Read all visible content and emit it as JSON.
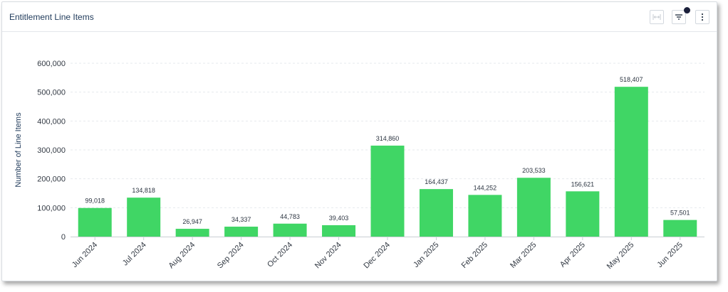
{
  "header": {
    "title": "Entitlement Line Items",
    "fit_icon": "fit-width-icon",
    "filter_icon": "filter-icon",
    "more_icon": "more-vertical-icon",
    "filter_active_color": "#1a1f3a"
  },
  "chart_data": {
    "type": "bar",
    "title": "",
    "xlabel": "",
    "ylabel": "Number of Line Items",
    "ylim": [
      0,
      600000
    ],
    "yticks": [
      0,
      100000,
      200000,
      300000,
      400000,
      500000,
      600000
    ],
    "ytick_labels": [
      "0",
      "100,000",
      "200,000",
      "300,000",
      "400,000",
      "500,000",
      "600,000"
    ],
    "grid": true,
    "bar_color": "#40d665",
    "categories": [
      "Jun 2024",
      "Jul 2024",
      "Aug 2024",
      "Sep 2024",
      "Oct 2024",
      "Nov 2024",
      "Dec 2024",
      "Jan 2025",
      "Feb 2025",
      "Mar 2025",
      "Apr 2025",
      "May 2025",
      "Jun 2025"
    ],
    "values": [
      99018,
      134818,
      26947,
      34337,
      44783,
      39403,
      314860,
      164437,
      144252,
      203533,
      156621,
      518407,
      57501
    ],
    "value_labels": [
      "99,018",
      "134,818",
      "26,947",
      "34,337",
      "44,783",
      "39,403",
      "314,860",
      "164,437",
      "144,252",
      "203,533",
      "156,621",
      "518,407",
      "57,501"
    ]
  }
}
